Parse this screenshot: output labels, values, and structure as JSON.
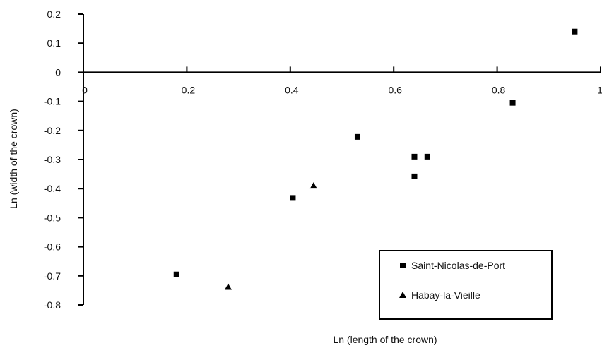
{
  "chart_data": {
    "type": "scatter",
    "xlabel": "Ln (length of the crown)",
    "ylabel": "Ln (width of the crown)",
    "xlim": [
      0,
      1
    ],
    "ylim": [
      -0.8,
      0.2
    ],
    "x_ticks": [
      0,
      0.2,
      0.4,
      0.6,
      0.8,
      1
    ],
    "x_tick_labels": [
      "0",
      "0.2",
      "0.4",
      "0.6",
      "0.8",
      "1"
    ],
    "y_ticks": [
      0.2,
      0.1,
      0,
      -0.1,
      -0.2,
      -0.3,
      -0.4,
      -0.5,
      -0.6,
      -0.7,
      -0.8
    ],
    "y_tick_labels": [
      "0.2",
      "0.1",
      "0",
      "-0.1",
      "-0.2",
      "-0.3",
      "-0.4",
      "-0.5",
      "-0.6",
      "-0.7",
      "-0.8"
    ],
    "grid": false,
    "legend_position": "bottom-right",
    "series": [
      {
        "name": "Saint-Nicolas-de-Port",
        "marker": "square",
        "color": "#000000",
        "points": [
          {
            "x": 0.18,
            "y": -0.695
          },
          {
            "x": 0.405,
            "y": -0.432
          },
          {
            "x": 0.53,
            "y": -0.222
          },
          {
            "x": 0.64,
            "y": -0.29
          },
          {
            "x": 0.665,
            "y": -0.29
          },
          {
            "x": 0.64,
            "y": -0.358
          },
          {
            "x": 0.83,
            "y": -0.105
          },
          {
            "x": 0.95,
            "y": 0.14
          }
        ]
      },
      {
        "name": "Habay-la-Vieille",
        "marker": "triangle",
        "color": "#000000",
        "points": [
          {
            "x": 0.28,
            "y": -0.738
          },
          {
            "x": 0.445,
            "y": -0.39
          }
        ]
      }
    ]
  }
}
